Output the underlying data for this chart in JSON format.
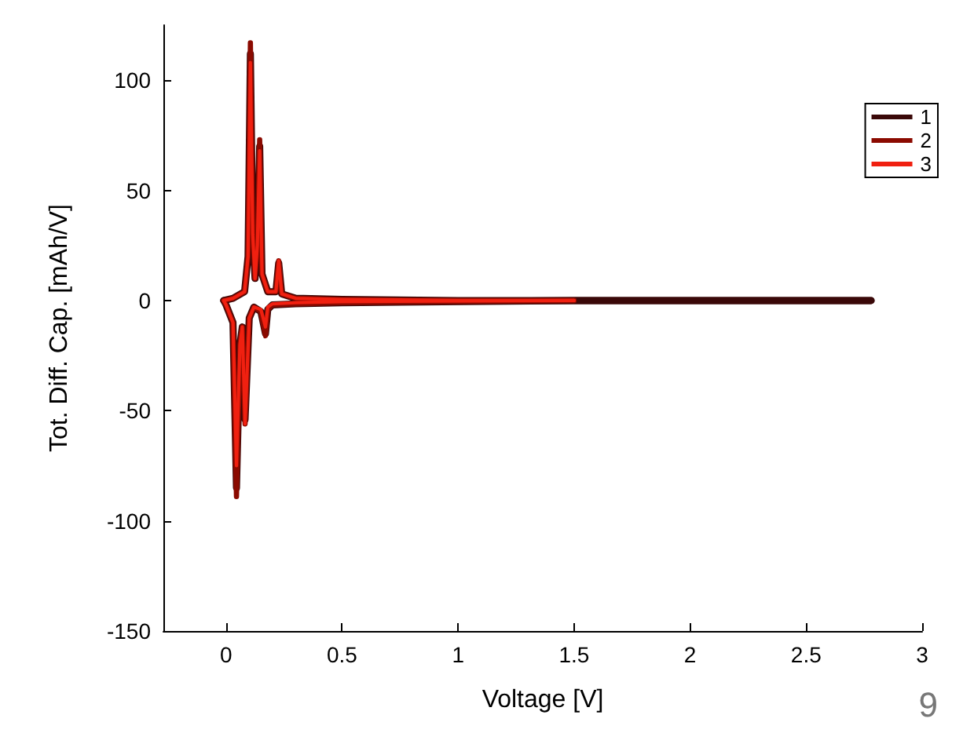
{
  "chart_data": {
    "type": "line",
    "xlabel": "Voltage [V]",
    "ylabel": "Tot. Diff. Cap. [mAh/V]",
    "xlim": [
      -0.27,
      3.0
    ],
    "xticks": [
      0,
      0.5,
      1,
      1.5,
      2,
      2.5,
      3
    ],
    "ylim": [
      -150,
      125
    ],
    "yticks": [
      -150,
      -100,
      -50,
      0,
      50,
      100
    ],
    "grid": false,
    "legend": "top right",
    "marker": "none",
    "line_style": "solid",
    "annotations": [
      "9"
    ],
    "series": [
      {
        "name": "1",
        "color": "#3a0808",
        "x": [
          -0.01,
          0.03,
          0.08,
          0.095,
          0.105,
          0.115,
          0.125,
          0.135,
          0.145,
          0.155,
          0.18,
          0.215,
          0.227,
          0.24,
          0.3,
          0.5,
          1.0,
          2.78
        ],
        "values": [
          0,
          1,
          4,
          20,
          112,
          30,
          10,
          25,
          70,
          12,
          4,
          4,
          17,
          3,
          1,
          0.5,
          0,
          0
        ]
      },
      {
        "color": "#3a0808",
        "x": [
          -0.01,
          0.0,
          0.03,
          0.045,
          0.06,
          0.07,
          0.082,
          0.1,
          0.12,
          0.15,
          0.17,
          0.18,
          0.2,
          0.3,
          0.5,
          1.5,
          2.78
        ],
        "values": [
          0,
          -2,
          -10,
          -85,
          -20,
          -12,
          -54,
          -8,
          -3,
          -5,
          -15,
          -4,
          -2,
          -1.5,
          -1,
          0,
          0
        ]
      },
      {
        "name": "2",
        "color": "#8b0a00",
        "x": [
          -0.01,
          0.03,
          0.08,
          0.095,
          0.105,
          0.115,
          0.125,
          0.135,
          0.145,
          0.155,
          0.18,
          0.215,
          0.227,
          0.24,
          0.3,
          0.5,
          1.0,
          1.5
        ],
        "values": [
          0,
          1,
          4,
          20,
          117,
          30,
          10,
          25,
          73,
          12,
          4,
          4,
          18,
          3,
          1,
          0.5,
          0,
          0
        ]
      },
      {
        "color": "#8b0a00",
        "x": [
          -0.01,
          0.0,
          0.03,
          0.045,
          0.06,
          0.07,
          0.082,
          0.1,
          0.12,
          0.15,
          0.17,
          0.18,
          0.2,
          0.3,
          0.5,
          1.5
        ],
        "values": [
          0,
          -2,
          -10,
          -89,
          -20,
          -12,
          -56,
          -8,
          -3,
          -5,
          -16,
          -4,
          -2,
          -1.5,
          -1,
          0
        ]
      },
      {
        "name": "3",
        "color": "#f02010",
        "x": [
          -0.01,
          0.03,
          0.08,
          0.095,
          0.105,
          0.115,
          0.125,
          0.135,
          0.145,
          0.155,
          0.18,
          0.215,
          0.227,
          0.24,
          0.3,
          0.5,
          1.0,
          1.5
        ],
        "values": [
          0,
          1,
          4,
          20,
          108,
          30,
          10,
          25,
          68,
          12,
          4,
          4,
          18,
          3,
          1,
          0.5,
          0,
          0
        ]
      },
      {
        "color": "#f02010",
        "x": [
          -0.01,
          0.0,
          0.03,
          0.045,
          0.06,
          0.07,
          0.082,
          0.1,
          0.12,
          0.15,
          0.17,
          0.18,
          0.2,
          0.3,
          0.5,
          1.5
        ],
        "values": [
          0,
          -2,
          -10,
          -75,
          -20,
          -12,
          -56,
          -8,
          -3,
          -4,
          -12,
          -3,
          -1.5,
          -1,
          -0.5,
          0
        ]
      }
    ]
  }
}
